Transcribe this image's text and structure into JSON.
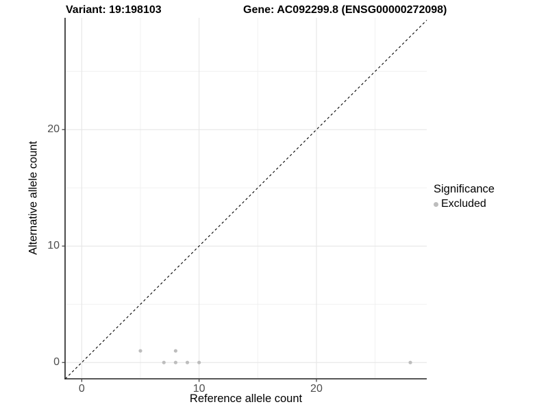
{
  "chart_data": {
    "type": "scatter",
    "title_left": "Variant: 19:198103",
    "title_right": "Gene: AC092299.8 (ENSG00000272098)",
    "xlabel": "Reference allele count",
    "ylabel": "Alternative allele count",
    "xlim": [
      -1.42,
      29.4
    ],
    "ylim": [
      -1.4,
      29.6
    ],
    "x_ticks": [
      0,
      10,
      20
    ],
    "y_ticks": [
      0,
      10,
      20
    ],
    "x_minor_ticks": [
      5,
      15,
      25
    ],
    "y_minor_ticks": [
      5,
      15,
      25
    ],
    "grid": true,
    "legend_position": "right",
    "identity_line": {
      "slope": 1,
      "intercept": 0,
      "style": "dashed",
      "color": "#000000"
    },
    "legend": {
      "title": "Significance",
      "items": [
        {
          "label": "Excluded",
          "color": "#bdbdbd"
        }
      ]
    },
    "series": [
      {
        "name": "Excluded",
        "color": "#bdbdbd",
        "point_radius": 2.6,
        "points": [
          [
            5,
            1
          ],
          [
            7,
            0
          ],
          [
            8,
            0
          ],
          [
            8,
            1
          ],
          [
            9,
            0
          ],
          [
            10,
            0
          ],
          [
            28,
            0
          ]
        ]
      }
    ],
    "colors": {
      "grid_major": "#e4e4e4",
      "grid_minor": "#f0f0f0",
      "axis_line": "#1f1f1f",
      "tick_mark": "#333333",
      "tick_text": "#4d4d4d"
    }
  }
}
